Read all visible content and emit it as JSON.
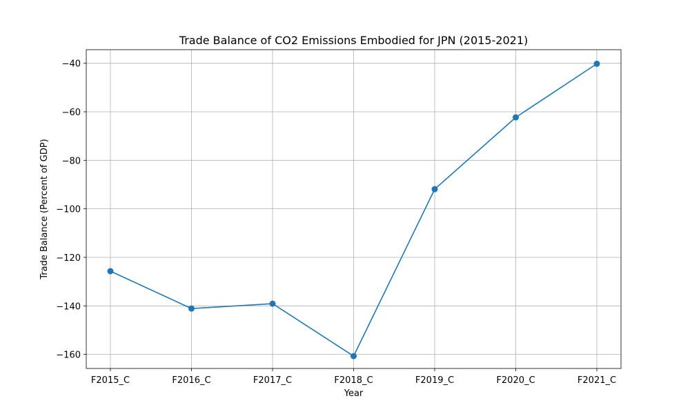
{
  "chart_data": {
    "type": "line",
    "title": "Trade Balance of CO2 Emissions Embodied for JPN (2015-2021)",
    "xlabel": "Year",
    "ylabel": "Trade Balance (Percent of GDP)",
    "categories": [
      "F2015_C",
      "F2016_C",
      "F2017_C",
      "F2018_C",
      "F2019_C",
      "F2020_C",
      "F2021_C"
    ],
    "series": [
      {
        "values": [
          -125.7,
          -141.1,
          -139.1,
          -160.7,
          -91.9,
          -62.3,
          -40.2
        ],
        "color": "#1f77b4",
        "marker": "circle"
      }
    ],
    "ylim": [
      -165.8,
      -34.4
    ],
    "yticks": [
      -160,
      -140,
      -120,
      -100,
      -80,
      -60,
      -40
    ],
    "grid": true,
    "legend": "none"
  }
}
